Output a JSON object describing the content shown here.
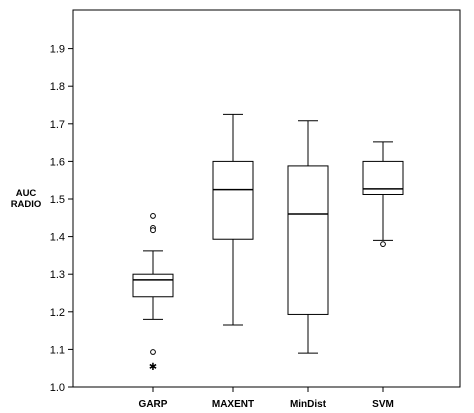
{
  "chart_data": {
    "type": "boxplot",
    "title": "",
    "ylabel_lines": [
      "AUC",
      "RADIO"
    ],
    "xlabel": "",
    "ylim": [
      1.0,
      2.0
    ],
    "yticks": [
      "1.0",
      "1.1",
      "1.2",
      "1.3",
      "1.4",
      "1.5",
      "1.6",
      "1.7",
      "1.8",
      "1.9"
    ],
    "categories": [
      "GARP",
      "MAXENT",
      "MinDist",
      "SVM"
    ],
    "boxes": [
      {
        "name": "GARP",
        "whisker_low": 1.18,
        "q1": 1.24,
        "median": 1.285,
        "q3": 1.3,
        "whisker_high": 1.362,
        "outliers": [
          {
            "value": 1.455,
            "marker": "circle"
          },
          {
            "value": 1.423,
            "marker": "circle"
          },
          {
            "value": 1.417,
            "marker": "circle"
          },
          {
            "value": 1.093,
            "marker": "circle"
          },
          {
            "value": 1.055,
            "marker": "star"
          }
        ]
      },
      {
        "name": "MAXENT",
        "whisker_low": 1.165,
        "q1": 1.393,
        "median": 1.525,
        "q3": 1.6,
        "whisker_high": 1.725,
        "outliers": []
      },
      {
        "name": "MinDist",
        "whisker_low": 1.09,
        "q1": 1.193,
        "median": 1.46,
        "q3": 1.588,
        "whisker_high": 1.708,
        "outliers": []
      },
      {
        "name": "SVM",
        "whisker_low": 1.39,
        "q1": 1.512,
        "median": 1.527,
        "q3": 1.6,
        "whisker_high": 1.652,
        "outliers": [
          {
            "value": 1.38,
            "marker": "circle"
          }
        ]
      }
    ],
    "grid": false,
    "legend": "none"
  }
}
